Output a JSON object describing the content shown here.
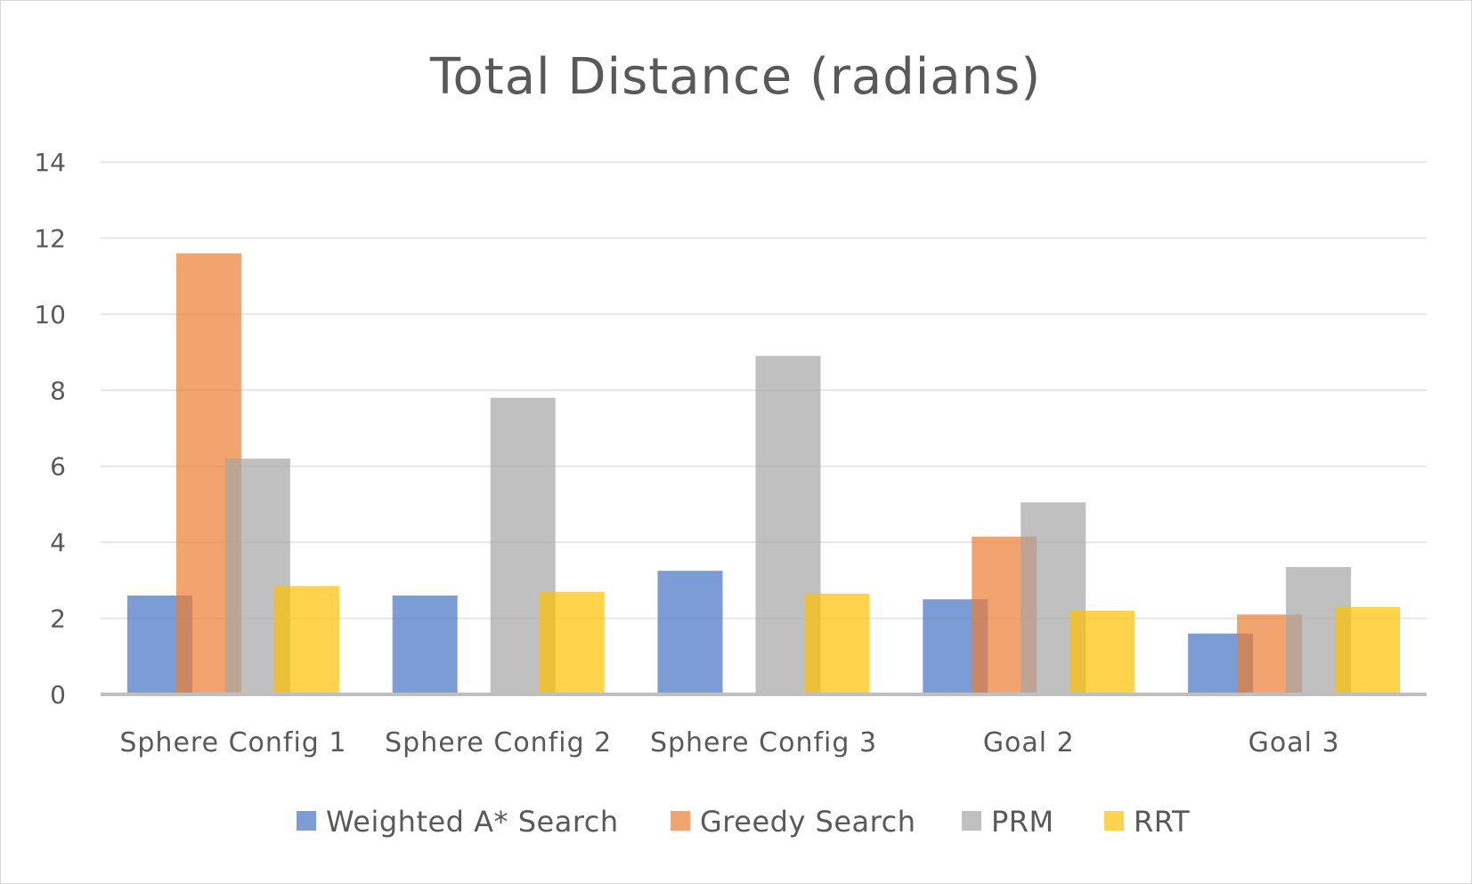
{
  "chart_data": {
    "type": "bar",
    "title": "Total Distance (radians)",
    "xlabel": "",
    "ylabel": "",
    "categories": [
      "Sphere Config 1",
      "Sphere Config 2",
      "Sphere Config 3",
      "Goal 2",
      "Goal 3"
    ],
    "series": [
      {
        "name": "Weighted A* Search",
        "color": "#4472c4",
        "values": [
          2.6,
          2.6,
          3.25,
          2.5,
          1.6
        ]
      },
      {
        "name": "Greedy Search",
        "color": "#ed7d31",
        "values": [
          11.6,
          0,
          0,
          4.15,
          2.1
        ]
      },
      {
        "name": "PRM",
        "color": "#a5a5a5",
        "values": [
          6.2,
          7.8,
          8.9,
          5.05,
          3.35
        ]
      },
      {
        "name": "RRT",
        "color": "#ffc000",
        "values": [
          2.85,
          2.7,
          2.65,
          2.2,
          2.3
        ]
      }
    ],
    "ylim": [
      0,
      14
    ],
    "yticks": [
      0,
      2,
      4,
      6,
      8,
      10,
      12,
      14
    ],
    "grid": true,
    "legend": "bottom",
    "bar_opacity": 0.7
  }
}
